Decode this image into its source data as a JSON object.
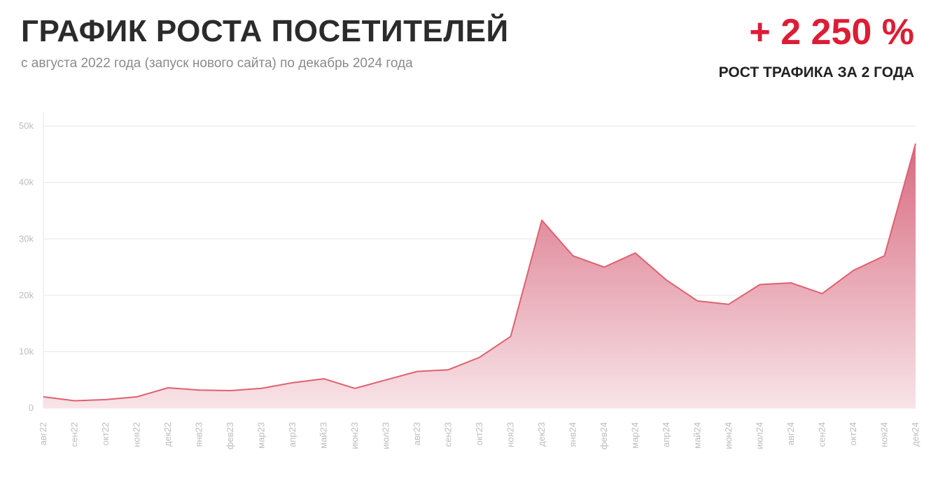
{
  "header": {
    "title": "ГРАФИК РОСТА ПОСЕТИТЕЛЕЙ",
    "subtitle": "с августа 2022 года (запуск нового сайта) по декабрь 2024 года"
  },
  "kpi": {
    "value": "+ 2 250 %",
    "label": "РОСТ ТРАФИКА ЗА 2 ГОДА"
  },
  "colors": {
    "accent": "#dd1c35",
    "line": "#e0606f",
    "fill_top": "#d86a80",
    "fill_bottom": "#f8e4e8",
    "grid": "#e6e6e6",
    "tick_text": "#bdbdbd"
  },
  "chart_data": {
    "type": "area",
    "categories": [
      "авг22",
      "сен22",
      "окт22",
      "ноя22",
      "дек22",
      "янв23",
      "фев23",
      "мар23",
      "апр23",
      "май23",
      "июн23",
      "июл23",
      "авг23",
      "сен23",
      "окт23",
      "ноя23",
      "дек23",
      "янв24",
      "фев24",
      "мар24",
      "апр24",
      "май24",
      "июн24",
      "июл24",
      "авг24",
      "сен24",
      "окт24",
      "ноя24",
      "дек24"
    ],
    "values": [
      2000,
      1300,
      1500,
      2000,
      3600,
      3200,
      3100,
      3500,
      4500,
      5200,
      3500,
      5000,
      6500,
      6800,
      9000,
      12700,
      33300,
      27000,
      25000,
      27500,
      22700,
      19000,
      18400,
      21900,
      22200,
      20300,
      24400,
      27000,
      46900
    ],
    "yticks": [
      0,
      10000,
      20000,
      30000,
      40000,
      50000
    ],
    "ytick_labels": [
      "0",
      "10k",
      "20k",
      "30k",
      "40k",
      "50k"
    ],
    "ylim": [
      0,
      52000
    ],
    "grid": true,
    "legend": "none"
  }
}
